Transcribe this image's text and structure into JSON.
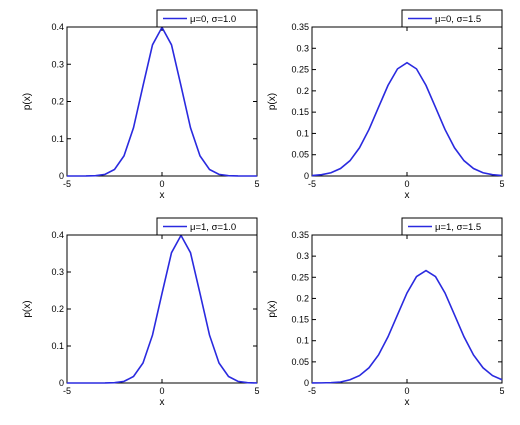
{
  "chart_data": [
    {
      "type": "line",
      "xlabel": "x",
      "ylabel": "p(x)",
      "xlim": [
        -5,
        5
      ],
      "ylim": [
        0,
        0.4
      ],
      "xticks": [
        -5,
        0,
        5
      ],
      "yticks": [
        0,
        0.1,
        0.2,
        0.3,
        0.4
      ],
      "xtick_labels": [
        "-5",
        "0",
        "5"
      ],
      "ytick_labels": [
        "0",
        "0.1",
        "0.2",
        "0.3",
        "0.4"
      ],
      "legend_position": "top-right",
      "grid": false,
      "series": [
        {
          "name": "μ=0, σ=1.0",
          "color": "#2a2adf",
          "x": [
            -5,
            -4.5,
            -4,
            -3.5,
            -3,
            -2.5,
            -2,
            -1.5,
            -1,
            -0.5,
            0,
            0.5,
            1,
            1.5,
            2,
            2.5,
            3,
            3.5,
            4,
            4.5,
            5
          ],
          "y": [
            0.0,
            0.0,
            0.0001,
            0.0009,
            0.0044,
            0.0175,
            0.054,
            0.1295,
            0.242,
            0.3521,
            0.3989,
            0.3521,
            0.242,
            0.1295,
            0.054,
            0.0175,
            0.0044,
            0.0009,
            0.0001,
            0.0,
            0.0
          ]
        }
      ]
    },
    {
      "type": "line",
      "xlabel": "x",
      "ylabel": "p(x)",
      "xlim": [
        -5,
        5
      ],
      "ylim": [
        0,
        0.35
      ],
      "xticks": [
        -5,
        0,
        5
      ],
      "yticks": [
        0,
        0.05,
        0.1,
        0.15,
        0.2,
        0.25,
        0.3,
        0.35
      ],
      "xtick_labels": [
        "-5",
        "0",
        "5"
      ],
      "ytick_labels": [
        "0",
        "0.05",
        "0.1",
        "0.15",
        "0.2",
        "0.25",
        "0.3",
        "0.35"
      ],
      "legend_position": "top-right",
      "grid": false,
      "series": [
        {
          "name": "μ=0, σ=1.5",
          "color": "#2a2adf",
          "x": [
            -5,
            -4.5,
            -4,
            -3.5,
            -3,
            -2.5,
            -2,
            -1.5,
            -1,
            -0.5,
            0,
            0.5,
            1,
            1.5,
            2,
            2.5,
            3,
            3.5,
            4,
            4.5,
            5
          ],
          "y": [
            0.001,
            0.003,
            0.0076,
            0.0176,
            0.036,
            0.0663,
            0.1093,
            0.1613,
            0.2129,
            0.2516,
            0.266,
            0.2516,
            0.2129,
            0.1613,
            0.1093,
            0.0663,
            0.036,
            0.0176,
            0.0076,
            0.003,
            0.001
          ]
        }
      ]
    },
    {
      "type": "line",
      "xlabel": "x",
      "ylabel": "p(x)",
      "xlim": [
        -5,
        5
      ],
      "ylim": [
        0,
        0.4
      ],
      "xticks": [
        -5,
        0,
        5
      ],
      "yticks": [
        0,
        0.1,
        0.2,
        0.3,
        0.4
      ],
      "xtick_labels": [
        "-5",
        "0",
        "5"
      ],
      "ytick_labels": [
        "0",
        "0.1",
        "0.2",
        "0.3",
        "0.4"
      ],
      "legend_position": "top-right",
      "grid": false,
      "series": [
        {
          "name": "μ=1, σ=1.0",
          "color": "#2a2adf",
          "x": [
            -5,
            -4.5,
            -4,
            -3.5,
            -3,
            -2.5,
            -2,
            -1.5,
            -1,
            -0.5,
            0,
            0.5,
            1,
            1.5,
            2,
            2.5,
            3,
            3.5,
            4,
            4.5,
            5
          ],
          "y": [
            0.0,
            0.0,
            0.0,
            0.0,
            0.0001,
            0.0009,
            0.0044,
            0.0175,
            0.054,
            0.1295,
            0.242,
            0.3521,
            0.3989,
            0.3521,
            0.242,
            0.1295,
            0.054,
            0.0175,
            0.0044,
            0.0009,
            0.0001
          ]
        }
      ]
    },
    {
      "type": "line",
      "xlabel": "x",
      "ylabel": "p(x)",
      "xlim": [
        -5,
        5
      ],
      "ylim": [
        0,
        0.35
      ],
      "xticks": [
        -5,
        0,
        5
      ],
      "yticks": [
        0,
        0.05,
        0.1,
        0.15,
        0.2,
        0.25,
        0.3,
        0.35
      ],
      "xtick_labels": [
        "-5",
        "0",
        "5"
      ],
      "ytick_labels": [
        "0",
        "0.05",
        "0.1",
        "0.15",
        "0.2",
        "0.25",
        "0.3",
        "0.35"
      ],
      "legend_position": "top-right",
      "grid": false,
      "series": [
        {
          "name": "μ=1, σ=1.5",
          "color": "#2a2adf",
          "x": [
            -5,
            -4.5,
            -4,
            -3.5,
            -3,
            -2.5,
            -2,
            -1.5,
            -1,
            -0.5,
            0,
            0.5,
            1,
            1.5,
            2,
            2.5,
            3,
            3.5,
            4,
            4.5,
            5
          ],
          "y": [
            0.0001,
            0.0003,
            0.0009,
            0.0024,
            0.0076,
            0.0176,
            0.036,
            0.0663,
            0.1093,
            0.1613,
            0.2129,
            0.2516,
            0.266,
            0.2516,
            0.2129,
            0.1613,
            0.1093,
            0.0663,
            0.036,
            0.0176,
            0.0076
          ]
        }
      ]
    }
  ]
}
